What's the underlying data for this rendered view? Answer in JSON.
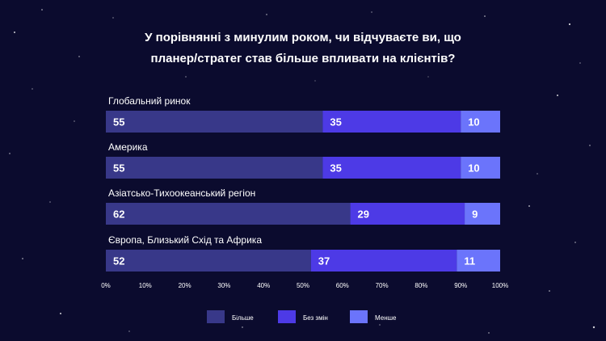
{
  "chart_data": {
    "type": "bar",
    "orientation": "horizontal-stacked",
    "title_lines": [
      "У порівнянні з минулим роком, чи відчуваєте ви, що",
      "планер/стратег став більше впливати на клієнтів?"
    ],
    "categories": [
      "Глобальний ринок",
      "Америка",
      "Азіатсько-Тихоокеанський регіон",
      "Європа, Близький Схід та Африка"
    ],
    "series": [
      {
        "name": "Більше",
        "values": [
          55,
          55,
          62,
          52
        ],
        "color": "#383889"
      },
      {
        "name": "Без змін",
        "values": [
          35,
          35,
          29,
          37
        ],
        "color": "#4d3ae6"
      },
      {
        "name": "Менше",
        "values": [
          10,
          10,
          9,
          11
        ],
        "color": "#6b74fb"
      }
    ],
    "xlim": [
      0,
      100
    ],
    "x_ticks": [
      "0%",
      "10%",
      "20%",
      "30%",
      "40%",
      "50%",
      "60%",
      "70%",
      "80%",
      "90%",
      "100%"
    ],
    "legend_position": "bottom",
    "grid": false
  }
}
